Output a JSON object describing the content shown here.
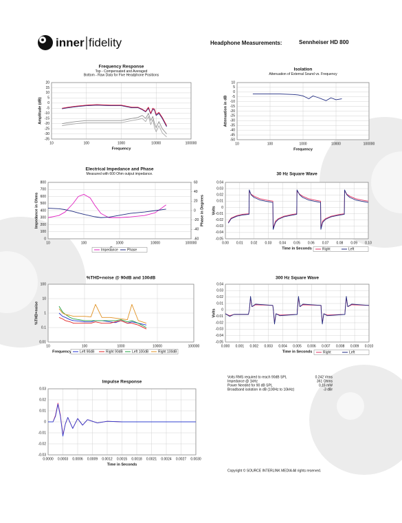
{
  "header": {
    "logo_left": "inner",
    "logo_right": "fidelity",
    "label": "Headphone Measurements:",
    "model": "Sennheiser HD 800"
  },
  "stats": [
    {
      "label": "Volts RMS required to reach 90dB SPL",
      "value": "0.242 Vrms"
    },
    {
      "label": "Impedance @ 1kHz",
      "value": "361 Ohms"
    },
    {
      "label": "Power Needed for 90 dB SPL",
      "value": "0.16 mW"
    },
    {
      "label": "Broadband isolation in dB (100Hz to 10kHz)",
      "value": "-3 dBr"
    }
  ],
  "copyright": "Copyright © SOURCE INTERLINK MEDIA All rights reserved.",
  "chart_data": [
    {
      "type": "line",
      "title": "Frequency Response",
      "subtitles": [
        "Top - Compensated and Averaged",
        "Bottom - Raw Data for Five Headphone Positions"
      ],
      "xlabel": "Frequency",
      "ylabel": "Amplitude (dB)",
      "xlog": true,
      "grid": true,
      "xlim": [
        10,
        100000
      ],
      "xticks": [
        10,
        100,
        1000,
        10000,
        100000
      ],
      "ylim": [
        -35,
        20
      ],
      "yticks": [
        20,
        15,
        10,
        5,
        0,
        -5,
        -10,
        -15,
        -20,
        -25,
        -30,
        -35
      ],
      "x": [
        20,
        30,
        50,
        100,
        200,
        500,
        1000,
        2000,
        3000,
        4000,
        5000,
        6000,
        7000,
        8000,
        9000,
        10000,
        12000,
        15000,
        20000
      ],
      "series": [
        {
          "color": "#909090",
          "values": [
            -20,
            -19,
            -18,
            -17,
            -17,
            -17,
            -17,
            -15,
            -14,
            -12,
            -15,
            -10,
            -17,
            -13,
            -20,
            -24,
            -18,
            -25,
            -30
          ]
        },
        {
          "color": "#a8a8a8",
          "values": [
            -22,
            -21,
            -20,
            -19,
            -19,
            -19,
            -19,
            -17,
            -16,
            -15,
            -18,
            -13,
            -21,
            -16,
            -24,
            -28,
            -22,
            -29,
            -33
          ]
        },
        {
          "color": "#1f2a80",
          "values": [
            -5.5,
            -4.5,
            -3.5,
            -2.5,
            -2,
            -2.5,
            -2.5,
            -4.5,
            -4.5,
            -6.5,
            -8.5,
            -5,
            -10.5,
            -6,
            -7,
            -12,
            -10,
            -15,
            -23
          ]
        },
        {
          "color": "#d0103a",
          "values": [
            -5,
            -4,
            -3,
            -2,
            -1.5,
            -2,
            -2,
            -4,
            -4,
            -6,
            -8,
            -4,
            -10,
            -5,
            -6,
            -11,
            -9,
            -14,
            -22
          ]
        }
      ]
    },
    {
      "type": "line",
      "title": "Isolation",
      "subtitles": [
        "Attenuation of External Sound vs. Frequency"
      ],
      "xlabel": "Frequency",
      "ylabel": "Attenuation in dB",
      "xlog": true,
      "grid": true,
      "xlim": [
        10,
        100000
      ],
      "xticks": [
        10,
        100,
        1000,
        10000,
        100000
      ],
      "ylim": [
        -50,
        10
      ],
      "yticks": [
        10,
        5,
        0,
        -5,
        -10,
        -15,
        -20,
        -25,
        -30,
        -35,
        -40,
        -45,
        -50
      ],
      "x": [
        30,
        50,
        100,
        200,
        500,
        700,
        1000,
        1500,
        2000,
        3000,
        5000,
        7000,
        10000,
        15000
      ],
      "series": [
        {
          "color": "#1f2a80",
          "values": [
            -2,
            -2,
            -2,
            -2,
            -2.5,
            -3,
            -4,
            -7,
            -4,
            -6,
            -9,
            -6,
            -8,
            -7
          ]
        }
      ]
    },
    {
      "type": "line",
      "title": "Electrical Impedance and Phase",
      "subtitles": [
        "Measured with 600 Ohm output impedance."
      ],
      "xlabel": "Frequency",
      "ylabel": "Impedance in Ohms",
      "y2label": "Phase in Degrees",
      "xlog": true,
      "grid": true,
      "legend": "bottom",
      "xlim": [
        10,
        100000
      ],
      "xticks": [
        10,
        100,
        1000,
        10000,
        100000
      ],
      "ylim": [
        0,
        800
      ],
      "yticks": [
        800,
        700,
        600,
        500,
        400,
        300,
        200,
        100,
        0
      ],
      "y2lim": [
        -60,
        60
      ],
      "y2ticks": [
        60,
        40,
        20,
        0,
        -20,
        -40,
        -60
      ],
      "x": [
        10,
        20,
        30,
        50,
        70,
        100,
        150,
        200,
        300,
        500,
        1000,
        2000,
        5000,
        10000,
        20000
      ],
      "series": [
        {
          "name": "Impedance",
          "color": "#e020c0",
          "values": [
            300,
            330,
            380,
            500,
            600,
            630,
            580,
            480,
            360,
            300,
            300,
            310,
            330,
            370,
            480
          ]
        },
        {
          "name": "Phase",
          "color": "#1f2a80",
          "axis": "y2",
          "values": [
            5,
            4,
            2,
            -2,
            -5,
            -8,
            -11,
            -13,
            -15,
            -14,
            -10,
            -6,
            -3,
            0,
            3
          ]
        }
      ]
    },
    {
      "type": "line",
      "title": "30 Hz Square Wave",
      "subtitles": [],
      "xlabel": "Time in Seconds",
      "ylabel": "Volts",
      "grid": true,
      "legend": "bottom-right",
      "xlim": [
        0,
        0.1
      ],
      "xticks": [
        {
          "value": 0,
          "label": "0.00"
        },
        0.01,
        0.02,
        0.03,
        0.04,
        0.05,
        0.06,
        0.07,
        0.08,
        0.09,
        {
          "value": 0.1,
          "label": "0.10"
        }
      ],
      "ylim": [
        -0.05,
        0.04
      ],
      "yticks": [
        0.04,
        0.03,
        0.02,
        0.01,
        0,
        -0.01,
        -0.02,
        -0.03,
        -0.04,
        -0.05
      ],
      "x": [
        0.002,
        0.004,
        0.008,
        0.012,
        0.0165,
        0.0167,
        0.018,
        0.02,
        0.024,
        0.028,
        0.0332,
        0.0334,
        0.035,
        0.037,
        0.041,
        0.045,
        0.0499,
        0.0501,
        0.052,
        0.054,
        0.058,
        0.062,
        0.0666,
        0.0668,
        0.068,
        0.07,
        0.074,
        0.078,
        0.0832,
        0.0834,
        0.085,
        0.087,
        0.091,
        0.095,
        0.0999
      ],
      "series": [
        {
          "name": "Right",
          "color": "#e03060",
          "values": [
            -0.024,
            -0.017,
            -0.013,
            -0.011,
            -0.01,
            0.026,
            0.021,
            0.018,
            0.014,
            0.012,
            0.01,
            -0.033,
            -0.022,
            -0.018,
            -0.014,
            -0.012,
            -0.01,
            0.026,
            0.021,
            0.018,
            0.014,
            0.012,
            0.01,
            -0.033,
            -0.022,
            -0.018,
            -0.014,
            -0.012,
            -0.01,
            0.026,
            0.021,
            0.018,
            0.014,
            0.012,
            0.01
          ]
        },
        {
          "name": "Left",
          "color": "#1f2a80",
          "values": [
            -0.025,
            -0.018,
            -0.014,
            -0.012,
            -0.011,
            0.028,
            0.02,
            0.016,
            0.012,
            0.01,
            0.008,
            -0.035,
            -0.024,
            -0.019,
            -0.015,
            -0.013,
            -0.011,
            0.028,
            0.02,
            0.016,
            0.012,
            0.01,
            0.008,
            -0.035,
            -0.024,
            -0.019,
            -0.015,
            -0.013,
            -0.011,
            0.028,
            0.02,
            0.016,
            0.012,
            0.01,
            0.008
          ]
        }
      ]
    },
    {
      "type": "line",
      "title": "%THD+noise @ 90dB and 100dB",
      "subtitles": [],
      "xlabel": "Frequency",
      "ylabel": "%THD+noise",
      "xlog": true,
      "ylog": true,
      "grid": true,
      "legend": "bottom",
      "xlim": [
        10,
        100000
      ],
      "xticks": [
        10,
        100,
        1000,
        10000,
        100000
      ],
      "ylim": [
        0.01,
        100
      ],
      "yticks": [
        100,
        10,
        1,
        0.1,
        0.01
      ],
      "x": [
        20,
        25,
        30,
        40,
        50,
        70,
        100,
        150,
        200,
        300,
        500,
        700,
        1000,
        1500,
        2000,
        3000,
        5000
      ],
      "series": [
        {
          "name": "Left 90dB",
          "color": "#2030d0",
          "values": [
            1,
            0.6,
            0.5,
            0.35,
            0.3,
            0.28,
            0.25,
            0.25,
            0.3,
            0.3,
            0.25,
            0.22,
            0.3,
            0.2,
            0.25,
            0.2,
            0.15
          ]
        },
        {
          "name": "Right 90dB",
          "color": "#e02020",
          "values": [
            0.5,
            0.4,
            0.3,
            0.25,
            0.2,
            0.2,
            0.2,
            0.2,
            0.25,
            0.2,
            0.2,
            0.25,
            0.3,
            0.2,
            0.2,
            0.15,
            0.08
          ]
        },
        {
          "name": "Left 100dB",
          "color": "#20a040",
          "values": [
            3,
            1.2,
            0.8,
            0.5,
            0.4,
            0.35,
            0.3,
            0.3,
            0.3,
            0.3,
            0.3,
            0.3,
            0.35,
            0.25,
            0.3,
            0.2,
            0.1
          ]
        },
        {
          "name": "Right 100dB",
          "color": "#e09020",
          "values": [
            2,
            1,
            0.8,
            0.7,
            0.6,
            0.6,
            0.6,
            0.55,
            4,
            0.5,
            0.5,
            0.45,
            0.4,
            0.35,
            4,
            0.3,
            0.2
          ]
        }
      ]
    },
    {
      "type": "line",
      "title": "300 Hz Square Wave",
      "subtitles": [],
      "xlabel": "Time in Seconds",
      "ylabel": "Volts",
      "grid": true,
      "legend": "bottom-right",
      "xlim": [
        0,
        0.01
      ],
      "xticks": [
        {
          "value": 0,
          "label": "0.000"
        },
        0.001,
        0.002,
        0.003,
        0.004,
        0.005,
        0.006,
        0.007,
        0.008,
        0.009,
        {
          "value": 0.01,
          "label": "0.010"
        }
      ],
      "ylim": [
        -0.05,
        0.04
      ],
      "yticks": [
        0.04,
        0.03,
        0.02,
        0.01,
        0,
        -0.01,
        -0.02,
        -0.03,
        -0.04,
        -0.05
      ],
      "x": [
        0,
        0.0003,
        0.0006,
        0.0016,
        0.00167,
        0.00175,
        0.00185,
        0.0021,
        0.0033,
        0.00334,
        0.00342,
        0.00352,
        0.0038,
        0.005,
        0.00501,
        0.00509,
        0.00519,
        0.0054,
        0.00666,
        0.00667,
        0.00675,
        0.00685,
        0.0071,
        0.00832,
        0.00834,
        0.00842,
        0.00852,
        0.0088,
        0.01
      ],
      "series": [
        {
          "name": "Right",
          "color": "#e03060",
          "values": [
            -0.006,
            -0.009,
            -0.007,
            -0.007,
            0,
            0.019,
            0.005,
            0.008,
            0.007,
            0,
            -0.02,
            -0.006,
            -0.008,
            -0.007,
            0,
            0.019,
            0.005,
            0.008,
            0.007,
            0,
            -0.02,
            -0.006,
            -0.008,
            -0.007,
            0,
            0.019,
            0.005,
            0.008,
            0.007
          ]
        },
        {
          "name": "Left",
          "color": "#1f2a80",
          "values": [
            -0.006,
            -0.01,
            -0.007,
            -0.007,
            0,
            0.021,
            0.005,
            0.009,
            0.007,
            0,
            -0.022,
            -0.006,
            -0.009,
            -0.007,
            0,
            0.021,
            0.005,
            0.009,
            0.007,
            0,
            -0.022,
            -0.006,
            -0.009,
            -0.007,
            0,
            0.021,
            0.005,
            0.009,
            0.007
          ]
        }
      ]
    },
    {
      "type": "line",
      "title": "Impulse Response",
      "subtitles": [],
      "xlabel": "Time in Seconds",
      "grid": true,
      "xlim": [
        0,
        0.003
      ],
      "xticks": [
        {
          "value": 0,
          "label": "0.0000"
        },
        0.0003,
        0.0006,
        0.0009,
        0.0012,
        0.0015,
        0.0018,
        0.0021,
        0.0024,
        0.0027,
        {
          "value": 0.003,
          "label": "0.0030"
        }
      ],
      "ylim": [
        -0.03,
        0.03
      ],
      "yticks": [
        0.03,
        0.02,
        0.01,
        0,
        -0.01,
        -0.02,
        -0.03
      ],
      "x": [
        0,
        0.0001,
        0.00015,
        0.0002,
        0.00025,
        0.0003,
        0.00035,
        0.0004,
        0.0005,
        0.0006,
        0.0007,
        0.0008,
        0.001,
        0.0012,
        0.0015,
        0.002,
        0.003
      ],
      "series": [
        {
          "color": "#e03060",
          "values": [
            0,
            0,
            0.006,
            0.017,
            0.006,
            -0.012,
            -0.002,
            0.004,
            -0.006,
            0.003,
            -0.003,
            0.002,
            -0.001,
            0.0005,
            0,
            0,
            0
          ]
        },
        {
          "color": "#3040d0",
          "values": [
            0,
            0,
            0.005,
            0.016,
            0.005,
            -0.013,
            -0.002,
            0.004,
            -0.006,
            0.003,
            -0.003,
            0.002,
            -0.001,
            0.0005,
            0,
            0,
            0
          ]
        }
      ]
    }
  ]
}
